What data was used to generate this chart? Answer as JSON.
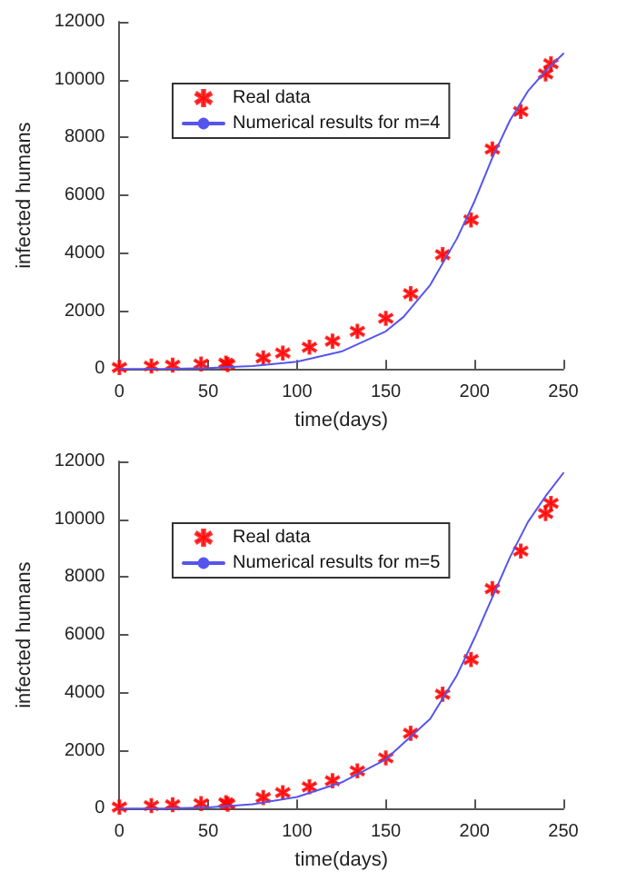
{
  "chart_data": [
    {
      "type": "scatter",
      "xlabel": "time(days)",
      "ylabel": "infected humans",
      "xlim": [
        0,
        250
      ],
      "xticks": [
        0,
        50,
        100,
        150,
        200,
        250
      ],
      "ylim": [
        0,
        12000
      ],
      "yticks": [
        0,
        2000,
        4000,
        6000,
        8000,
        10000,
        12000
      ],
      "grid": false,
      "legend": "top",
      "series": [
        {
          "name": "Real data",
          "type": "scatter",
          "marker": "cross",
          "color": "#ff0000",
          "x": [
            0,
            18,
            30,
            46,
            60,
            61,
            81,
            92,
            107,
            120,
            134,
            150,
            164,
            182,
            198,
            210,
            226,
            240,
            243
          ],
          "values": [
            50,
            100,
            130,
            170,
            200,
            150,
            380,
            550,
            750,
            960,
            1300,
            1750,
            2600,
            3950,
            5150,
            7600,
            8900,
            10200,
            10550
          ]
        },
        {
          "name": "Numerical results for m=4",
          "type": "line",
          "marker": "none",
          "color": "#5555ee",
          "line_style": "solid",
          "x": [
            0,
            25,
            50,
            75,
            100,
            125,
            150,
            160,
            175,
            190,
            200,
            210,
            220,
            230,
            240,
            250
          ],
          "values": [
            0,
            0,
            30,
            100,
            250,
            600,
            1300,
            1800,
            2900,
            4500,
            5800,
            7300,
            8600,
            9600,
            10300,
            10900
          ]
        }
      ]
    },
    {
      "type": "scatter",
      "xlabel": "time(days)",
      "ylabel": "infected humans",
      "xlim": [
        0,
        250
      ],
      "xticks": [
        0,
        50,
        100,
        150,
        200,
        250
      ],
      "ylim": [
        0,
        12000
      ],
      "yticks": [
        0,
        2000,
        4000,
        6000,
        8000,
        10000,
        12000
      ],
      "grid": false,
      "legend": "top",
      "series": [
        {
          "name": "Real data",
          "type": "scatter",
          "marker": "cross",
          "color": "#ff0000",
          "x": [
            0,
            18,
            30,
            46,
            60,
            61,
            81,
            92,
            107,
            120,
            134,
            150,
            164,
            182,
            198,
            210,
            226,
            240,
            243
          ],
          "values": [
            50,
            100,
            130,
            170,
            200,
            150,
            380,
            550,
            750,
            960,
            1300,
            1750,
            2600,
            3950,
            5150,
            7600,
            8900,
            10200,
            10550
          ]
        },
        {
          "name": "Numerical results for m=5",
          "type": "line",
          "marker": "none",
          "color": "#5555ee",
          "line_style": "solid",
          "x": [
            0,
            25,
            50,
            75,
            100,
            125,
            150,
            175,
            190,
            200,
            210,
            220,
            230,
            240,
            250
          ],
          "values": [
            0,
            0,
            40,
            150,
            400,
            900,
            1700,
            3100,
            4600,
            5900,
            7300,
            8700,
            9900,
            10800,
            11600
          ]
        }
      ]
    }
  ]
}
